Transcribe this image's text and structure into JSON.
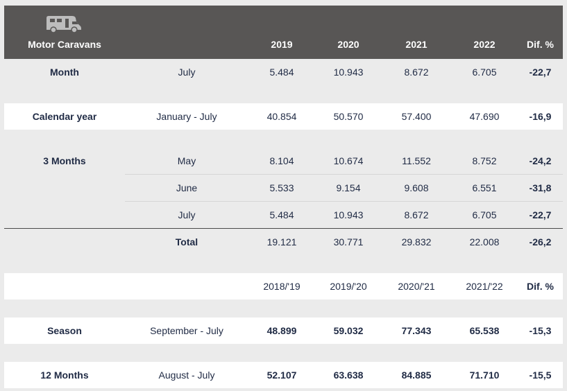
{
  "header": {
    "icon": "motorhome-icon",
    "title": "Motor Caravans",
    "years": [
      "2019",
      "2020",
      "2021",
      "2022"
    ],
    "diff": "Dif. %"
  },
  "month": {
    "label": "Month",
    "period": "July",
    "v2019": "5.484",
    "v2020": "10.943",
    "v2021": "8.672",
    "v2022": "6.705",
    "diff": "-22,7"
  },
  "calendar_year": {
    "label": "Calendar year",
    "period": "January - July",
    "v2019": "40.854",
    "v2020": "50.570",
    "v2021": "57.400",
    "v2022": "47.690",
    "diff": "-16,9"
  },
  "three_months": {
    "label": "3 Months",
    "rows": [
      {
        "period": "May",
        "v2019": "8.104",
        "v2020": "10.674",
        "v2021": "11.552",
        "v2022": "8.752",
        "diff": "-24,2"
      },
      {
        "period": "June",
        "v2019": "5.533",
        "v2020": "9.154",
        "v2021": "9.608",
        "v2022": "6.551",
        "diff": "-31,8"
      },
      {
        "period": "July",
        "v2019": "5.484",
        "v2020": "10.943",
        "v2021": "8.672",
        "v2022": "6.705",
        "diff": "-22,7"
      }
    ],
    "total": {
      "period": "Total",
      "v2019": "19.121",
      "v2020": "30.771",
      "v2021": "29.832",
      "v2022": "22.008",
      "diff": "-26,2"
    }
  },
  "season_header": {
    "s1": "2018/'19",
    "s2": "2019/'20",
    "s3": "2020/'21",
    "s4": "2021/'22",
    "diff": "Dif. %"
  },
  "season": {
    "label": "Season",
    "period": "September - July",
    "v1": "48.899",
    "v2": "59.032",
    "v3": "77.343",
    "v4": "65.538",
    "diff": "-15,3"
  },
  "twelve_months": {
    "label": "12 Months",
    "period": "August - July",
    "v1": "52.107",
    "v2": "63.638",
    "v3": "84.885",
    "v4": "71.710",
    "diff": "-15,5"
  }
}
